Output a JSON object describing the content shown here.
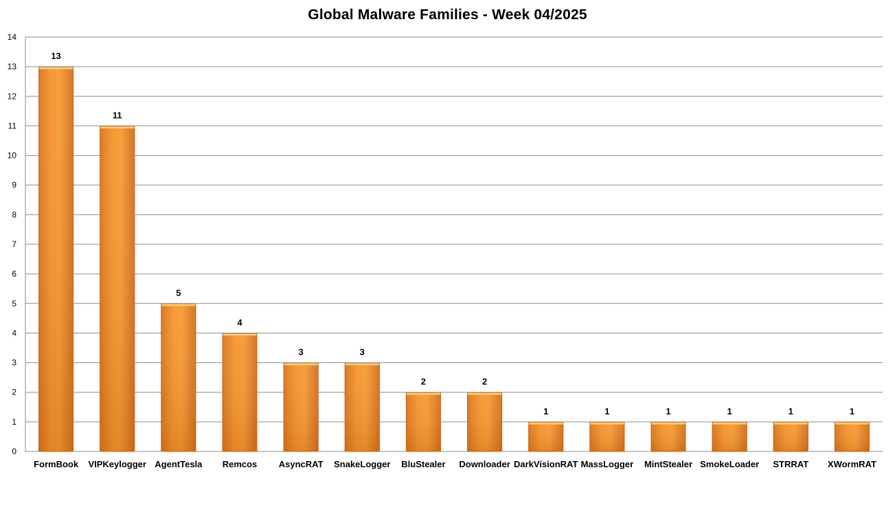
{
  "chart_data": {
    "type": "bar",
    "title": "Global Malware Families - Week 04/2025",
    "xlabel": "",
    "ylabel": "",
    "ylim": [
      0,
      14
    ],
    "yticks": [
      0,
      1,
      2,
      3,
      4,
      5,
      6,
      7,
      8,
      9,
      10,
      11,
      12,
      13,
      14
    ],
    "grid": true,
    "legend": "none",
    "bar_color": "#f7962c",
    "categories": [
      "FormBook",
      "VIPKeylogger",
      "AgentTesla",
      "Remcos",
      "AsyncRAT",
      "SnakeLogger",
      "BluStealer",
      "Downloader",
      "DarkVisionRAT",
      "MassLogger",
      "MintStealer",
      "SmokeLoader",
      "STRRAT",
      "XWormRAT"
    ],
    "values": [
      13,
      11,
      5,
      4,
      3,
      3,
      2,
      2,
      1,
      1,
      1,
      1,
      1,
      1
    ]
  }
}
